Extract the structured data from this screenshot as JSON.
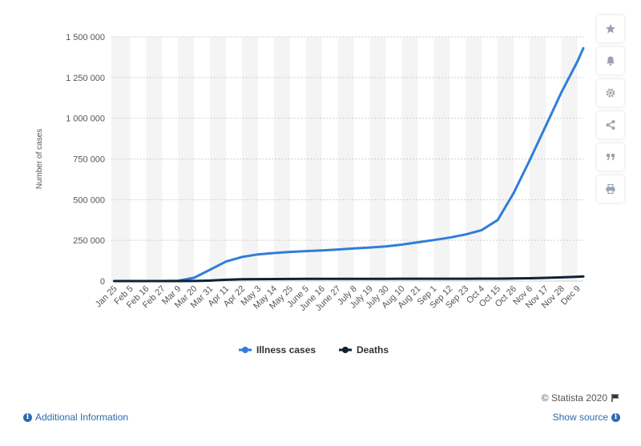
{
  "colors": {
    "illness": "#2f7ed8",
    "deaths": "#0d2234",
    "band": "#f4f4f4",
    "grid": "#cfcfcf",
    "axis_text": "#555555",
    "link": "#2b6cb0"
  },
  "sidebar": {
    "icons": [
      "star-icon",
      "bell-icon",
      "gear-icon",
      "share-icon",
      "quote-icon",
      "print-icon"
    ]
  },
  "footer": {
    "credit": "© Statista 2020",
    "additional_info": "Additional Information",
    "show_source": "Show source"
  },
  "chart_data": {
    "type": "line",
    "ylabel": "Number of cases",
    "xlabel": "",
    "ylim": [
      0,
      1500000
    ],
    "y_ticks": [
      0,
      250000,
      500000,
      750000,
      1000000,
      1250000,
      1500000
    ],
    "y_tick_labels": [
      "0",
      "250 000",
      "500 000",
      "750 000",
      "1 000 000",
      "1 250 000",
      "1 500 000"
    ],
    "x_tick_labels": [
      "Jan 25",
      "Feb 5",
      "Feb 16",
      "Feb 27",
      "Mar 9",
      "Mar 20",
      "Mar 31",
      "Apr 11",
      "Apr 22",
      "May 3",
      "May 14",
      "May 25",
      "June 5",
      "June 16",
      "June 27",
      "July 8",
      "July 19",
      "July 30",
      "Aug 10",
      "Aug 21",
      "Sep 1",
      "Sep 12",
      "Sep 23",
      "Oct 4",
      "Oct 15",
      "Oct 26",
      "Nov 6",
      "Nov 17",
      "Nov 28",
      "Dec 9"
    ],
    "legend": [
      "Illness cases",
      "Deaths"
    ],
    "legend_position": "bottom",
    "grid": true,
    "series": [
      {
        "name": "Illness cases",
        "points": [
          [
            "Jan 25",
            0
          ],
          [
            "Feb 5",
            0
          ],
          [
            "Feb 16",
            0
          ],
          [
            "Feb 27",
            0
          ],
          [
            "Mar 9",
            2000
          ],
          [
            "Mar 20",
            20000
          ],
          [
            "Mar 31",
            70000
          ],
          [
            "Apr 11",
            120000
          ],
          [
            "Apr 22",
            148000
          ],
          [
            "May 3",
            164000
          ],
          [
            "May 14",
            172000
          ],
          [
            "May 25",
            179000
          ],
          [
            "June 5",
            184000
          ],
          [
            "June 16",
            188000
          ],
          [
            "June 27",
            194000
          ],
          [
            "July 8",
            200000
          ],
          [
            "July 19",
            206000
          ],
          [
            "July 30",
            213000
          ],
          [
            "Aug 10",
            224000
          ],
          [
            "Aug 21",
            238000
          ],
          [
            "Sep 1",
            252000
          ],
          [
            "Sep 12",
            267000
          ],
          [
            "Sep 23",
            286000
          ],
          [
            "Oct 4",
            313000
          ],
          [
            "Oct 15",
            375000
          ],
          [
            "Oct 26",
            540000
          ],
          [
            "Nov 6",
            740000
          ],
          [
            "Nov 17",
            950000
          ],
          [
            "Nov 28",
            1160000
          ],
          [
            "Dec 9",
            1350000
          ],
          [
            "Dec 13",
            1430000
          ]
        ]
      },
      {
        "name": "Deaths",
        "points": [
          [
            "Jan 25",
            0
          ],
          [
            "Feb 5",
            0
          ],
          [
            "Feb 16",
            0
          ],
          [
            "Feb 27",
            0
          ],
          [
            "Mar 9",
            0
          ],
          [
            "Mar 20",
            500
          ],
          [
            "Mar 31",
            3000
          ],
          [
            "Apr 11",
            8000
          ],
          [
            "Apr 22",
            11000
          ],
          [
            "May 3",
            12000
          ],
          [
            "May 14",
            12500
          ],
          [
            "May 25",
            13000
          ],
          [
            "June 5",
            13200
          ],
          [
            "June 16",
            13400
          ],
          [
            "June 27",
            13600
          ],
          [
            "July 8",
            13800
          ],
          [
            "July 19",
            13900
          ],
          [
            "July 30",
            14000
          ],
          [
            "Aug 10",
            14100
          ],
          [
            "Aug 21",
            14200
          ],
          [
            "Sep 1",
            14300
          ],
          [
            "Sep 12",
            14400
          ],
          [
            "Sep 23",
            14500
          ],
          [
            "Oct 4",
            14600
          ],
          [
            "Oct 15",
            14800
          ],
          [
            "Oct 26",
            15500
          ],
          [
            "Nov 6",
            17000
          ],
          [
            "Nov 17",
            19500
          ],
          [
            "Nov 28",
            22500
          ],
          [
            "Dec 9",
            26500
          ],
          [
            "Dec 13",
            28500
          ]
        ]
      }
    ]
  }
}
